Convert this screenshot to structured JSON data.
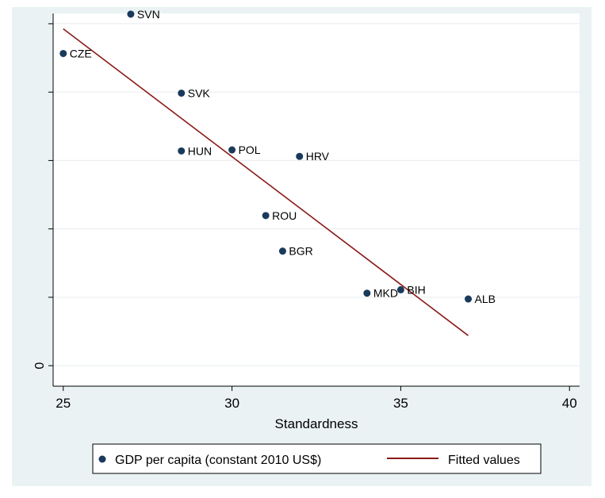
{
  "chart_data": {
    "type": "scatter",
    "xlabel": "Standardness",
    "ylabel": "",
    "xlim": [
      24.7,
      40.3
    ],
    "ylim": [
      -0.06,
      1.03
    ],
    "x_ticks": [
      25,
      30,
      35,
      40
    ],
    "y_ticks": [
      0,
      0.2,
      0.4,
      0.6,
      0.8,
      1.0
    ],
    "y_tick_labels": [
      "0",
      "",
      "",
      "",
      "",
      ""
    ],
    "grid": true,
    "legend_position": "bottom",
    "series": [
      {
        "name": "GDP per capita (constant 2010 US$)",
        "kind": "scatter",
        "color": "#1a3a5c",
        "points": [
          {
            "label": "SVN",
            "x": 27.0,
            "y": 1.028
          },
          {
            "label": "CZE",
            "x": 25.0,
            "y": 0.913
          },
          {
            "label": "SVK",
            "x": 28.5,
            "y": 0.797
          },
          {
            "label": "HUN",
            "x": 28.5,
            "y": 0.628
          },
          {
            "label": "POL",
            "x": 30.0,
            "y": 0.631
          },
          {
            "label": "HRV",
            "x": 32.0,
            "y": 0.612
          },
          {
            "label": "ROU",
            "x": 31.0,
            "y": 0.439
          },
          {
            "label": "BGR",
            "x": 31.5,
            "y": 0.335
          },
          {
            "label": "MKD",
            "x": 34.0,
            "y": 0.212
          },
          {
            "label": "BIH",
            "x": 35.0,
            "y": 0.222
          },
          {
            "label": "ALB",
            "x": 37.0,
            "y": 0.195
          }
        ]
      },
      {
        "name": "Fitted values",
        "kind": "line",
        "color": "#8b1a1a",
        "x": [
          25.0,
          37.0
        ],
        "y": [
          0.985,
          0.088
        ]
      }
    ]
  }
}
